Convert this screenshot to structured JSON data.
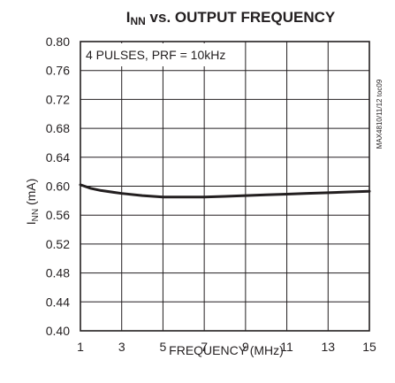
{
  "chart_data": {
    "type": "line",
    "title": {
      "main": "I",
      "sub": "NN",
      "rest": " vs. OUTPUT FREQUENCY"
    },
    "xlabel": "FREQUENCY (MHz)",
    "ylabel": {
      "main": "I",
      "sub": "NN",
      "rest": " (mA)"
    },
    "annotation": "4 PULSES, PRF = 10kHz",
    "figure_id": "MAX4810/11/12 toc09",
    "xlim": [
      1,
      15
    ],
    "ylim": [
      0.4,
      0.8
    ],
    "x_ticks": [
      "1",
      "3",
      "5",
      "7",
      "9",
      "11",
      "13",
      "15"
    ],
    "y_ticks": [
      "0.40",
      "0.44",
      "0.48",
      "0.52",
      "0.56",
      "0.60",
      "0.64",
      "0.68",
      "0.72",
      "0.76",
      "0.80"
    ],
    "grid": true,
    "series": [
      {
        "x": [
          1,
          1.5,
          2,
          3,
          4,
          5,
          6,
          7,
          8,
          9,
          10,
          11,
          12,
          13,
          14,
          15
        ],
        "y": [
          0.602,
          0.597,
          0.594,
          0.59,
          0.587,
          0.585,
          0.585,
          0.585,
          0.586,
          0.587,
          0.588,
          0.589,
          0.59,
          0.591,
          0.592,
          0.593
        ]
      }
    ]
  }
}
